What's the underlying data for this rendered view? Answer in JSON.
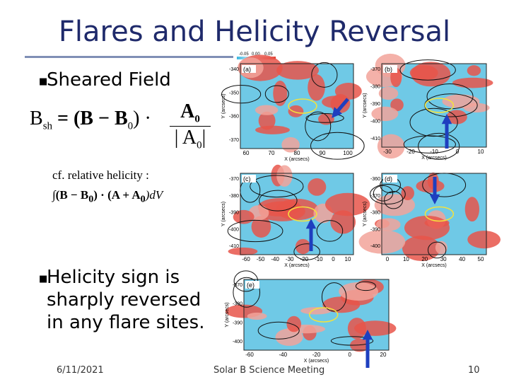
{
  "header": {
    "title": "Flares and Helicity Reversal"
  },
  "bullets": [
    "Sheared Field",
    "Helicity sign is sharply reversed in any flare sites."
  ],
  "formula": {
    "lhs": "B",
    "lhs_sub": "sh",
    "eq": "= (B − B",
    "sub0": "0",
    "rest": ") ·",
    "num": "A",
    "num_sub": "0",
    "den": "| A",
    "den_sub": "0",
    "den_end": "|"
  },
  "note": {
    "line1": "cf. relative helicity :",
    "line2": "∫(B − B",
    "sub_a": "0",
    "mid": ") · (A + A",
    "sub_b": "0",
    "end": ")dV"
  },
  "colorbar": [
    "-0.05",
    "0.00",
    "0.05"
  ],
  "panels": [
    {
      "label": "(a)",
      "xlabel": "X (arcsecs)",
      "ylabel": "Y (arcsecs)",
      "xticks": [
        60,
        70,
        80,
        90,
        100
      ],
      "yticks": [
        -340,
        -350,
        -360,
        -370
      ]
    },
    {
      "label": "(b)",
      "xlabel": "X (arcsecs)",
      "ylabel": "Y (arcsecs)",
      "xticks": [
        -30,
        -20,
        -10,
        0,
        10
      ],
      "yticks": [
        -370,
        -380,
        -390,
        -400,
        -410
      ]
    },
    {
      "label": "(c)",
      "xlabel": "X (arcsecs)",
      "ylabel": "Y (arcsecs)",
      "xticks": [
        -60,
        -50,
        -40,
        -30,
        -20,
        -10,
        0,
        10
      ],
      "yticks": [
        -370,
        -380,
        -390,
        -400,
        -410
      ]
    },
    {
      "label": "(d)",
      "xlabel": "X (arcsecs)",
      "ylabel": "Y (arcsecs)",
      "xticks": [
        0,
        10,
        20,
        30,
        40,
        50
      ],
      "yticks": [
        -360,
        -370,
        -380,
        -390,
        -400
      ]
    },
    {
      "label": "(e)",
      "xlabel": "X (arcsecs)",
      "ylabel": "Y (arcsecs)",
      "xticks": [
        -60,
        -40,
        -20,
        0,
        20
      ],
      "yticks": [
        -370,
        -380,
        -390,
        -400
      ]
    }
  ],
  "footer": {
    "date": "6/11/2021",
    "event": "Solar B Science Meeting",
    "page": "10"
  }
}
